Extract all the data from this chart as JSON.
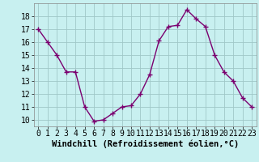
{
  "x": [
    0,
    1,
    2,
    3,
    4,
    5,
    6,
    7,
    8,
    9,
    10,
    11,
    12,
    13,
    14,
    15,
    16,
    17,
    18,
    19,
    20,
    21,
    22,
    23
  ],
  "y": [
    17.0,
    16.0,
    15.0,
    13.7,
    13.7,
    11.0,
    9.9,
    10.0,
    10.5,
    11.0,
    11.1,
    12.0,
    13.5,
    16.1,
    17.2,
    17.3,
    18.5,
    17.8,
    17.2,
    15.0,
    13.7,
    13.0,
    11.7,
    11.0
  ],
  "line_color": "#7B0070",
  "marker": "+",
  "marker_size": 4,
  "marker_linewidth": 1.0,
  "bg_color": "#c8f0f0",
  "grid_color": "#a0c8c8",
  "xlabel": "Windchill (Refroidissement éolien,°C)",
  "xlabel_fontsize": 7.5,
  "tick_fontsize": 7,
  "ylim": [
    9.5,
    19.0
  ],
  "xlim": [
    -0.5,
    23.5
  ],
  "yticks": [
    10,
    11,
    12,
    13,
    14,
    15,
    16,
    17,
    18
  ],
  "xticks": [
    0,
    1,
    2,
    3,
    4,
    5,
    6,
    7,
    8,
    9,
    10,
    11,
    12,
    13,
    14,
    15,
    16,
    17,
    18,
    19,
    20,
    21,
    22,
    23
  ]
}
